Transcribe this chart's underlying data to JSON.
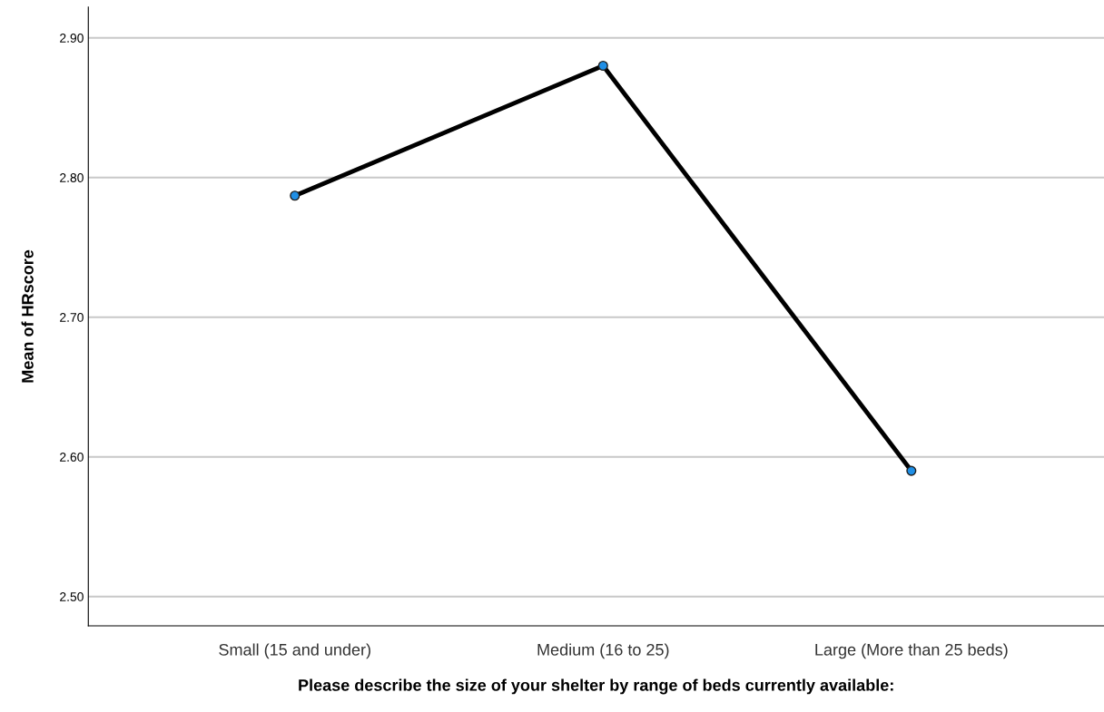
{
  "chart_data": {
    "type": "line",
    "xlabel": "Please describe the size of your shelter by range of beds currently available:",
    "ylabel": "Mean of HRscore",
    "categories": [
      "Small (15 and under)",
      "Medium (16 to 25)",
      "Large (More than 25 beds)"
    ],
    "series": [
      {
        "color": "#000000",
        "values": [
          2.787,
          2.88,
          2.59
        ]
      }
    ],
    "ylim": [
      2.479,
      2.922
    ],
    "yticks": [
      {
        "value": 2.5,
        "label": "2.50"
      },
      {
        "value": 2.6,
        "label": "2.60"
      },
      {
        "value": 2.7,
        "label": "2.70"
      },
      {
        "value": 2.8,
        "label": "2.80"
      },
      {
        "value": 2.9,
        "label": "2.90"
      }
    ],
    "grid": "y",
    "marker": "circle",
    "line_style": "solid"
  }
}
